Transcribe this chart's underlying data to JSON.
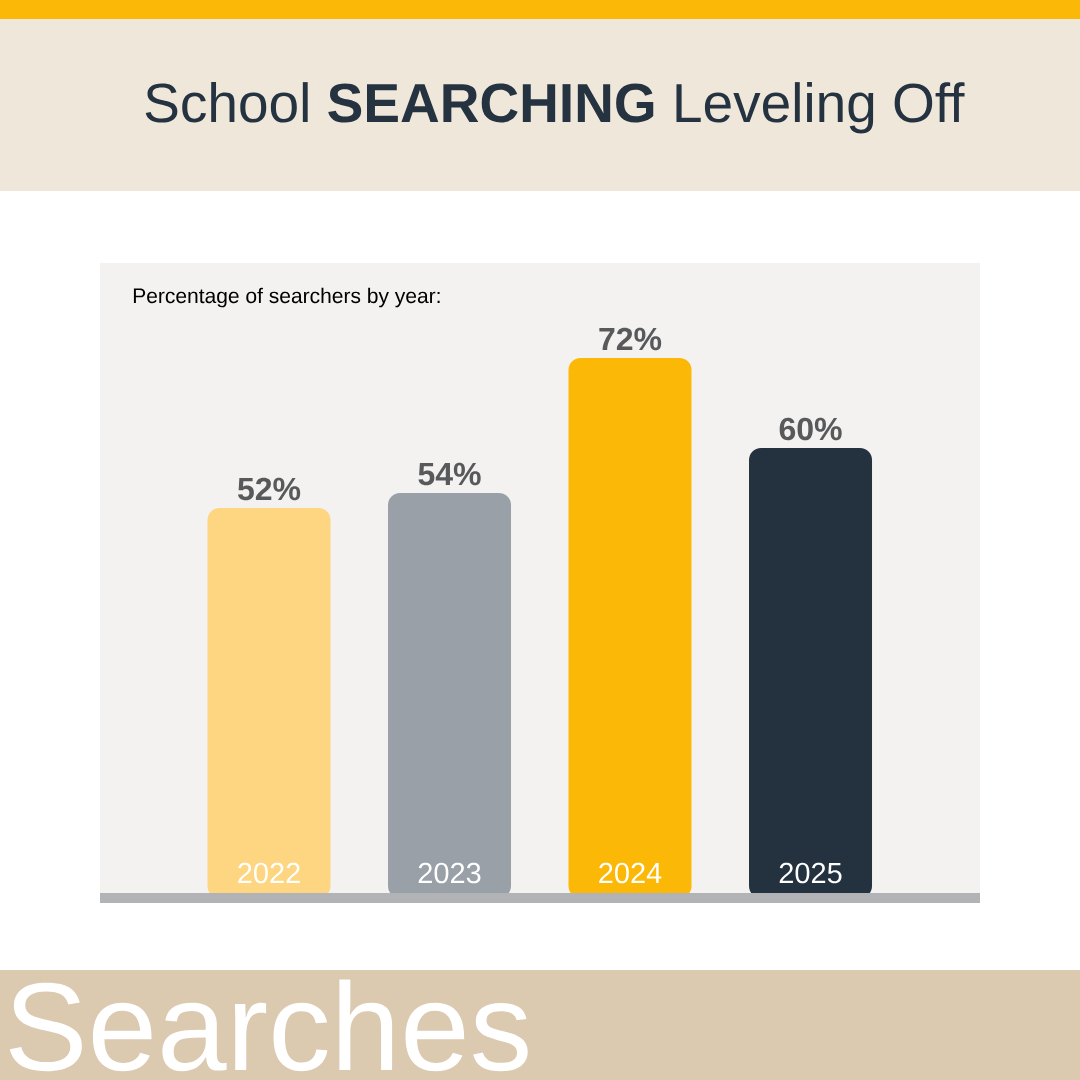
{
  "chart_data": {
    "type": "bar",
    "title": "School **SEARCHING** Leveling Off",
    "subtitle": "Percentage of searchers by year:",
    "categories": [
      "2022",
      "2023",
      "2024",
      "2025"
    ],
    "values": [
      52,
      54,
      72,
      60
    ],
    "colors": [
      "#fed580",
      "#99a0a7",
      "#fbb806",
      "#243240"
    ],
    "value_labels": [
      "52%",
      "54%",
      "72%",
      "60%"
    ],
    "annotations": [
      "Searches"
    ]
  }
}
